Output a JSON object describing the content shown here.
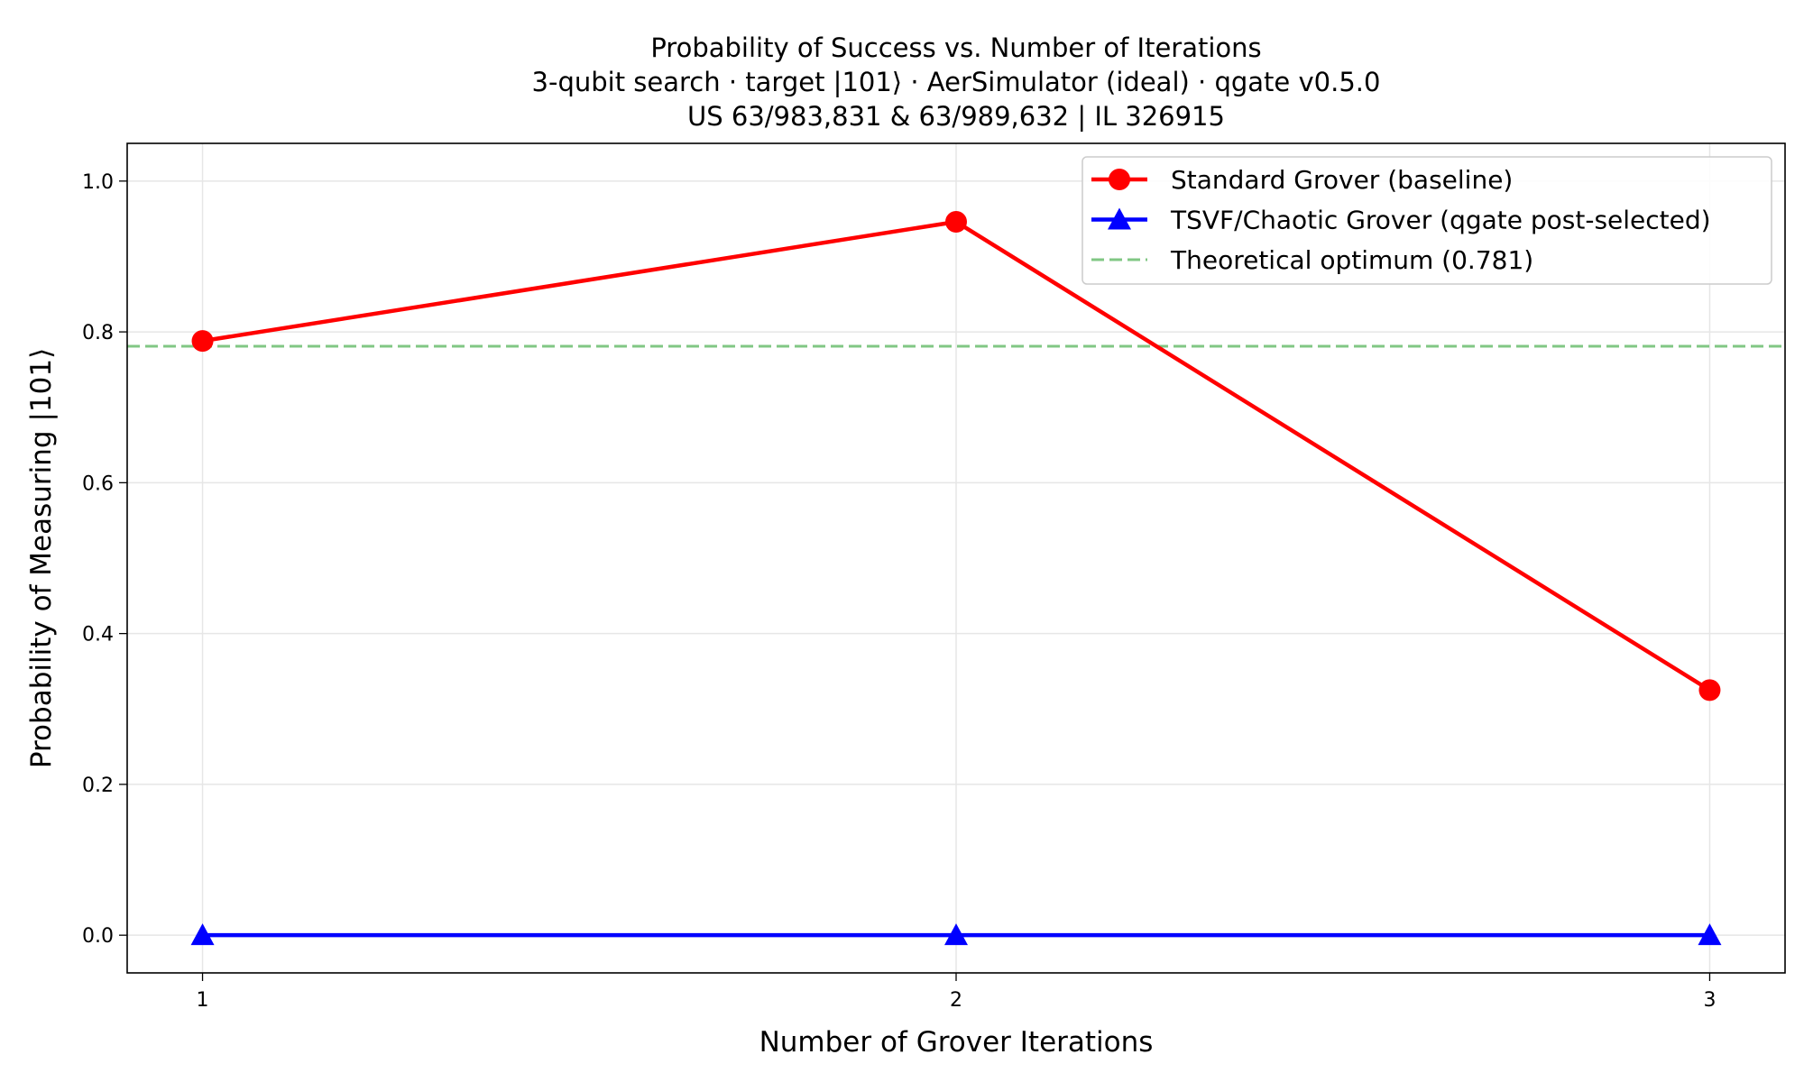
{
  "chart_data": {
    "type": "line",
    "title": [
      "Probability of Success vs. Number of Iterations",
      "3-qubit search · target |101⟩ · AerSimulator (ideal) · qgate v0.5.0",
      "US 63/983,831 & 63/989,632 | IL 326915"
    ],
    "xlabel": "Number of Grover Iterations",
    "ylabel": "Probability of Measuring |101⟩",
    "xlim": [
      0.9,
      3.1
    ],
    "ylim": [
      -0.05,
      1.05
    ],
    "xticks": [
      1,
      2,
      3
    ],
    "xtick_labels": [
      "1",
      "2",
      "3"
    ],
    "yticks": [
      0.0,
      0.2,
      0.4,
      0.6,
      0.8,
      1.0
    ],
    "ytick_labels": [
      "0.0",
      "0.2",
      "0.4",
      "0.6",
      "0.8",
      "1.0"
    ],
    "grid": true,
    "legend_placement": "top-right",
    "x": [
      1,
      2,
      3
    ],
    "series": [
      {
        "name": "Standard Grover (baseline)",
        "values": [
          0.788,
          0.946,
          0.325
        ],
        "color": "#ff0000",
        "marker": "circle"
      },
      {
        "name": "TSVF/Chaotic Grover (qgate post-selected)",
        "values": [
          0.0,
          0.0,
          0.0
        ],
        "color": "#0000ff",
        "marker": "triangle"
      }
    ],
    "reference_lines": [
      {
        "name": "Theoretical optimum (0.781)",
        "y": 0.781,
        "color": "#4caf50",
        "style": "dashed"
      }
    ]
  }
}
